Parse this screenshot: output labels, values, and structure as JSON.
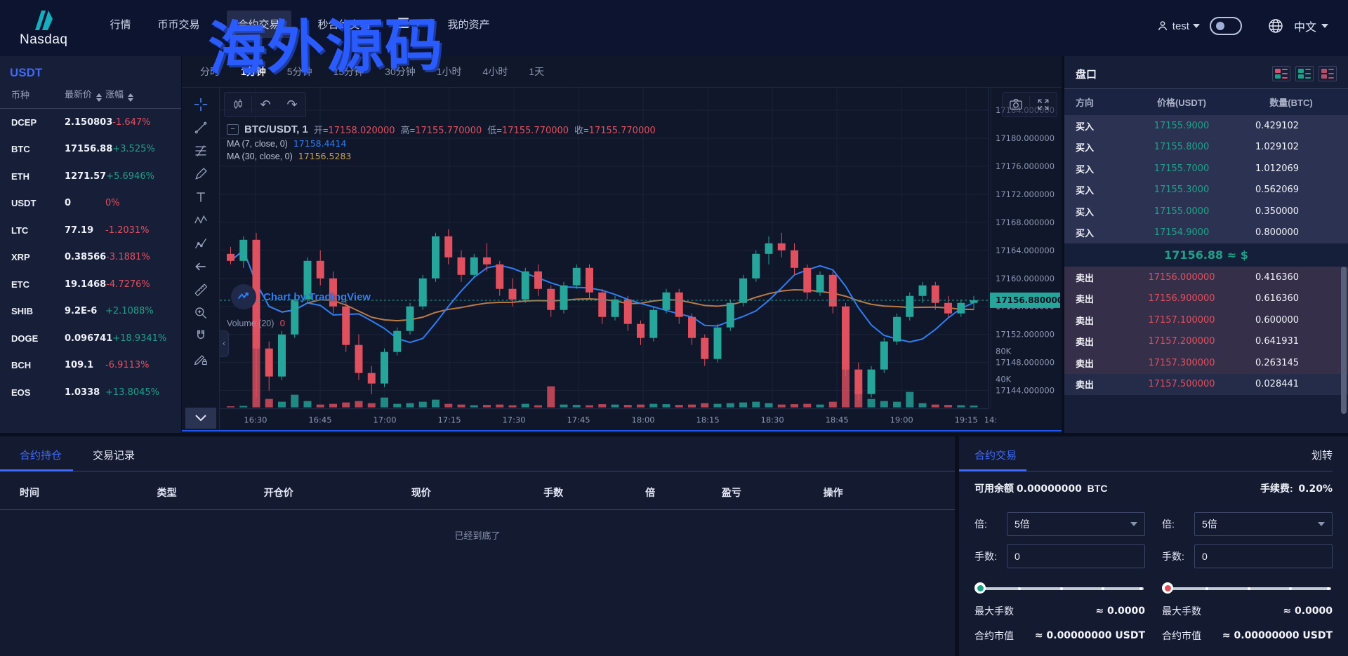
{
  "watermark": "海外源码",
  "colors": {
    "accent": "#3f6af5",
    "green": "#26a69a",
    "red": "#e0505f",
    "ma7": "#2d7ff5",
    "ma30": "#b97a45",
    "current_price_bg": "#26a69a",
    "watermark": "#2a5bfe",
    "long": "#1fa189",
    "short": "#e34d5b"
  },
  "navbar": {
    "logo_text": "Nasdaq",
    "items": [
      "行情",
      "币币交易",
      "合约交易",
      "秒合约交易",
      "我的资产"
    ],
    "active_item": "合约交易",
    "user": "test",
    "language": "中文"
  },
  "sidebar": {
    "market_label": "USDT",
    "columns": {
      "coin": "币种",
      "price": "最新价",
      "change": "涨幅"
    },
    "rows": [
      {
        "coin": "DCEP",
        "price": "2.150803",
        "change": "-1.647%",
        "dir": "down"
      },
      {
        "coin": "BTC",
        "price": "17156.88",
        "change": "+3.525%",
        "dir": "up"
      },
      {
        "coin": "ETH",
        "price": "1271.57",
        "change": "+5.6946%",
        "dir": "up"
      },
      {
        "coin": "USDT",
        "price": "0",
        "change": "0%",
        "dir": "down"
      },
      {
        "coin": "LTC",
        "price": "77.19",
        "change": "-1.2031%",
        "dir": "down"
      },
      {
        "coin": "XRP",
        "price": "0.38566",
        "change": "-3.1881%",
        "dir": "down"
      },
      {
        "coin": "ETC",
        "price": "19.1468",
        "change": "-4.7276%",
        "dir": "down"
      },
      {
        "coin": "SHIB",
        "price": "9.2E-6",
        "change": "+2.1088%",
        "dir": "up"
      },
      {
        "coin": "DOGE",
        "price": "0.096741",
        "change": "+18.9341%",
        "dir": "up"
      },
      {
        "coin": "BCH",
        "price": "109.1",
        "change": "-6.9113%",
        "dir": "down"
      },
      {
        "coin": "EOS",
        "price": "1.0338",
        "change": "+13.8045%",
        "dir": "up"
      }
    ]
  },
  "chart": {
    "timeframes": [
      "分时",
      "1分钟",
      "5分钟",
      "15分钟",
      "30分钟",
      "1小时",
      "4小时",
      "1天"
    ],
    "active_timeframe": "1分钟",
    "toolbar_icons": [
      "crosshair",
      "trend-line",
      "fib-retracement",
      "brush",
      "text",
      "pattern",
      "forecast",
      "arrow-left",
      "ruler",
      "zoom-in",
      "magnet",
      "drawing-lock"
    ],
    "legend": {
      "symbol": "BTC/USDT, 1",
      "o_label": "开",
      "o": "17158.020000",
      "h_label": "高",
      "h": "17155.770000",
      "l_label": "低",
      "l": "17155.770000",
      "c_label": "收",
      "c": "17155.770000"
    },
    "ma7": {
      "label": "MA (7, close, 0)",
      "value": "17158.4414"
    },
    "ma30": {
      "label": "MA (30, close, 0)",
      "value": "17156.5283"
    },
    "volume": {
      "label": "Volume (20)",
      "value": "0"
    },
    "tradingview": "Chart by TradingView",
    "current_price": "17156.880000",
    "chart_data": {
      "type": "candlestick",
      "symbol": "BTC/USDT",
      "interval": "1分钟",
      "ylim": [
        17138,
        17187
      ],
      "price_ticks": [
        "17184.000000",
        "17180.000000",
        "17176.000000",
        "17172.000000",
        "17168.000000",
        "17164.000000",
        "17160.000000",
        "17156.000000",
        "17152.000000",
        "17148.000000",
        "17144.000000"
      ],
      "volume_ticks": [
        "80K",
        "40K"
      ],
      "time_ticks": [
        "16:30",
        "16:45",
        "17:00",
        "17:15",
        "17:30",
        "17:45",
        "18:00",
        "18:15",
        "18:30",
        "18:45",
        "19:00",
        "19:15",
        "14:"
      ],
      "candles": [
        [
          17163.5,
          17164.5,
          17162,
          17162.5
        ],
        [
          17162.5,
          17166,
          17161.5,
          17165.5
        ],
        [
          17165.5,
          17166.5,
          17143,
          17150
        ],
        [
          17150,
          17151,
          17144,
          17146
        ],
        [
          17146,
          17152.5,
          17145.5,
          17152
        ],
        [
          17152,
          17157.5,
          17151.5,
          17157
        ],
        [
          17157,
          17163,
          17156.5,
          17162.5
        ],
        [
          17162.5,
          17164,
          17159,
          17160
        ],
        [
          17160,
          17161,
          17155,
          17156
        ],
        [
          17156,
          17157,
          17149.5,
          17150.5
        ],
        [
          17150.5,
          17152,
          17145.5,
          17146.5
        ],
        [
          17146.5,
          17147.5,
          17143.5,
          17145
        ],
        [
          17145,
          17150,
          17144.5,
          17149.5
        ],
        [
          17149.5,
          17153,
          17149,
          17152.5
        ],
        [
          17152.5,
          17156.5,
          17152,
          17156
        ],
        [
          17156,
          17160.5,
          17155.5,
          17160
        ],
        [
          17160,
          17166.5,
          17159.5,
          17166
        ],
        [
          17166,
          17167,
          17162,
          17163
        ],
        [
          17163,
          17164,
          17159.5,
          17160.5
        ],
        [
          17160.5,
          17163.5,
          17160,
          17163
        ],
        [
          17163,
          17165,
          17161,
          17162
        ],
        [
          17162,
          17162.5,
          17157.5,
          17158.5
        ],
        [
          17158.5,
          17160,
          17156,
          17157
        ],
        [
          17157,
          17161.5,
          17156.5,
          17161
        ],
        [
          17161,
          17162,
          17157.5,
          17158.5
        ],
        [
          17158.5,
          17159,
          17154.5,
          17155.5
        ],
        [
          17155.5,
          17159.5,
          17155,
          17159
        ],
        [
          17159,
          17162,
          17158.5,
          17161.5
        ],
        [
          17161.5,
          17162,
          17157,
          17158
        ],
        [
          17158,
          17158.5,
          17153.5,
          17154.5
        ],
        [
          17154.5,
          17157.5,
          17154,
          17157
        ],
        [
          17157,
          17157.5,
          17152.5,
          17153.5
        ],
        [
          17153.5,
          17154,
          17150.5,
          17151.5
        ],
        [
          17151.5,
          17156,
          17151,
          17155.5
        ],
        [
          17155.5,
          17158.5,
          17155,
          17158
        ],
        [
          17158,
          17158.5,
          17153.5,
          17154.5
        ],
        [
          17154.5,
          17155,
          17150.5,
          17151.5
        ],
        [
          17151.5,
          17152,
          17147.5,
          17148.5
        ],
        [
          17148.5,
          17153.5,
          17148,
          17153
        ],
        [
          17153,
          17157,
          17152.5,
          17156.5
        ],
        [
          17156.5,
          17160.5,
          17156,
          17160
        ],
        [
          17160,
          17164,
          17159.5,
          17163.5
        ],
        [
          17163.5,
          17166,
          17162,
          17165
        ],
        [
          17165,
          17166.5,
          17163,
          17164
        ],
        [
          17164,
          17165,
          17160.5,
          17161.5
        ],
        [
          17161.5,
          17162,
          17157,
          17158
        ],
        [
          17158,
          17161,
          17157.5,
          17160.5
        ],
        [
          17160.5,
          17161,
          17155,
          17156
        ],
        [
          17156,
          17156.5,
          17146,
          17147
        ],
        [
          17147,
          17148,
          17142.5,
          17143.5
        ],
        [
          17143.5,
          17147.5,
          17143,
          17147
        ],
        [
          17147,
          17151.5,
          17146.5,
          17151
        ],
        [
          17151,
          17155,
          17150.5,
          17154.5
        ],
        [
          17154.5,
          17158,
          17154,
          17157.5
        ],
        [
          17157.5,
          17159.5,
          17156.5,
          17159
        ],
        [
          17159,
          17159.5,
          17155.5,
          17156.5
        ],
        [
          17156.5,
          17157.5,
          17154.5,
          17155
        ],
        [
          17155,
          17157,
          17154.5,
          17156.5
        ],
        [
          17156.5,
          17157.5,
          17155.5,
          17156.88
        ]
      ],
      "volumes_k": [
        1.5,
        2,
        95,
        12,
        8,
        18,
        9,
        4,
        5,
        7,
        9,
        6,
        14,
        5,
        6,
        8,
        11,
        5,
        4,
        3,
        3.5,
        4,
        3,
        5,
        3,
        30,
        4,
        3.5,
        3,
        4.5,
        4,
        3.5,
        4,
        5,
        4.5,
        3.5,
        4,
        6,
        5,
        6,
        7,
        8,
        6,
        4,
        4.5,
        5,
        4,
        8,
        85,
        25,
        12,
        9,
        8,
        22,
        6,
        4,
        3.5,
        3,
        2.5
      ],
      "ma_series": [
        {
          "period": 7,
          "last": 17158.4414
        },
        {
          "period": 30,
          "last": 17156.5283
        }
      ]
    }
  },
  "orderbook": {
    "title": "盘口",
    "view_icons": [
      "book-both",
      "book-buy",
      "book-sell"
    ],
    "columns": [
      "方向",
      "价格(USDT)",
      "数量(BTC)"
    ],
    "buy_label": "买入",
    "sell_label": "卖出",
    "bids": [
      [
        "17155.9000",
        "0.429102"
      ],
      [
        "17155.8000",
        "1.029102"
      ],
      [
        "17155.7000",
        "1.012069"
      ],
      [
        "17155.3000",
        "0.562069"
      ],
      [
        "17155.0000",
        "0.350000"
      ],
      [
        "17154.9000",
        "0.800000"
      ]
    ],
    "mid": "17156.88 ≈ $",
    "asks": [
      [
        "17156.000000",
        "0.416360"
      ],
      [
        "17156.900000",
        "0.616360"
      ],
      [
        "17157.100000",
        "0.600000"
      ],
      [
        "17157.200000",
        "0.641931"
      ],
      [
        "17157.300000",
        "0.263145"
      ],
      [
        "17157.500000",
        "0.028441"
      ]
    ]
  },
  "positions": {
    "tabs": [
      "合约持仓",
      "交易记录"
    ],
    "active_tab": "合约持仓",
    "columns": [
      "时间",
      "类型",
      "开仓价",
      "现价",
      "手数",
      "倍",
      "盈亏",
      "操作"
    ],
    "empty_text": "已经到底了"
  },
  "trade": {
    "tab": "合约交易",
    "transfer": "划转",
    "balance_label": "可用余额",
    "balance": "0.00000000",
    "balance_unit": "BTC",
    "fee_label": "手续费:",
    "fee": "0.20%",
    "lever_label": "倍:",
    "lever_value": "5倍",
    "amount_label": "手数:",
    "amount_value": "0",
    "max_label": "最大手数",
    "max_value": "≈ 0.0000",
    "market_value_label": "合约市值",
    "market_value": "≈ 0.00000000 USDT"
  }
}
